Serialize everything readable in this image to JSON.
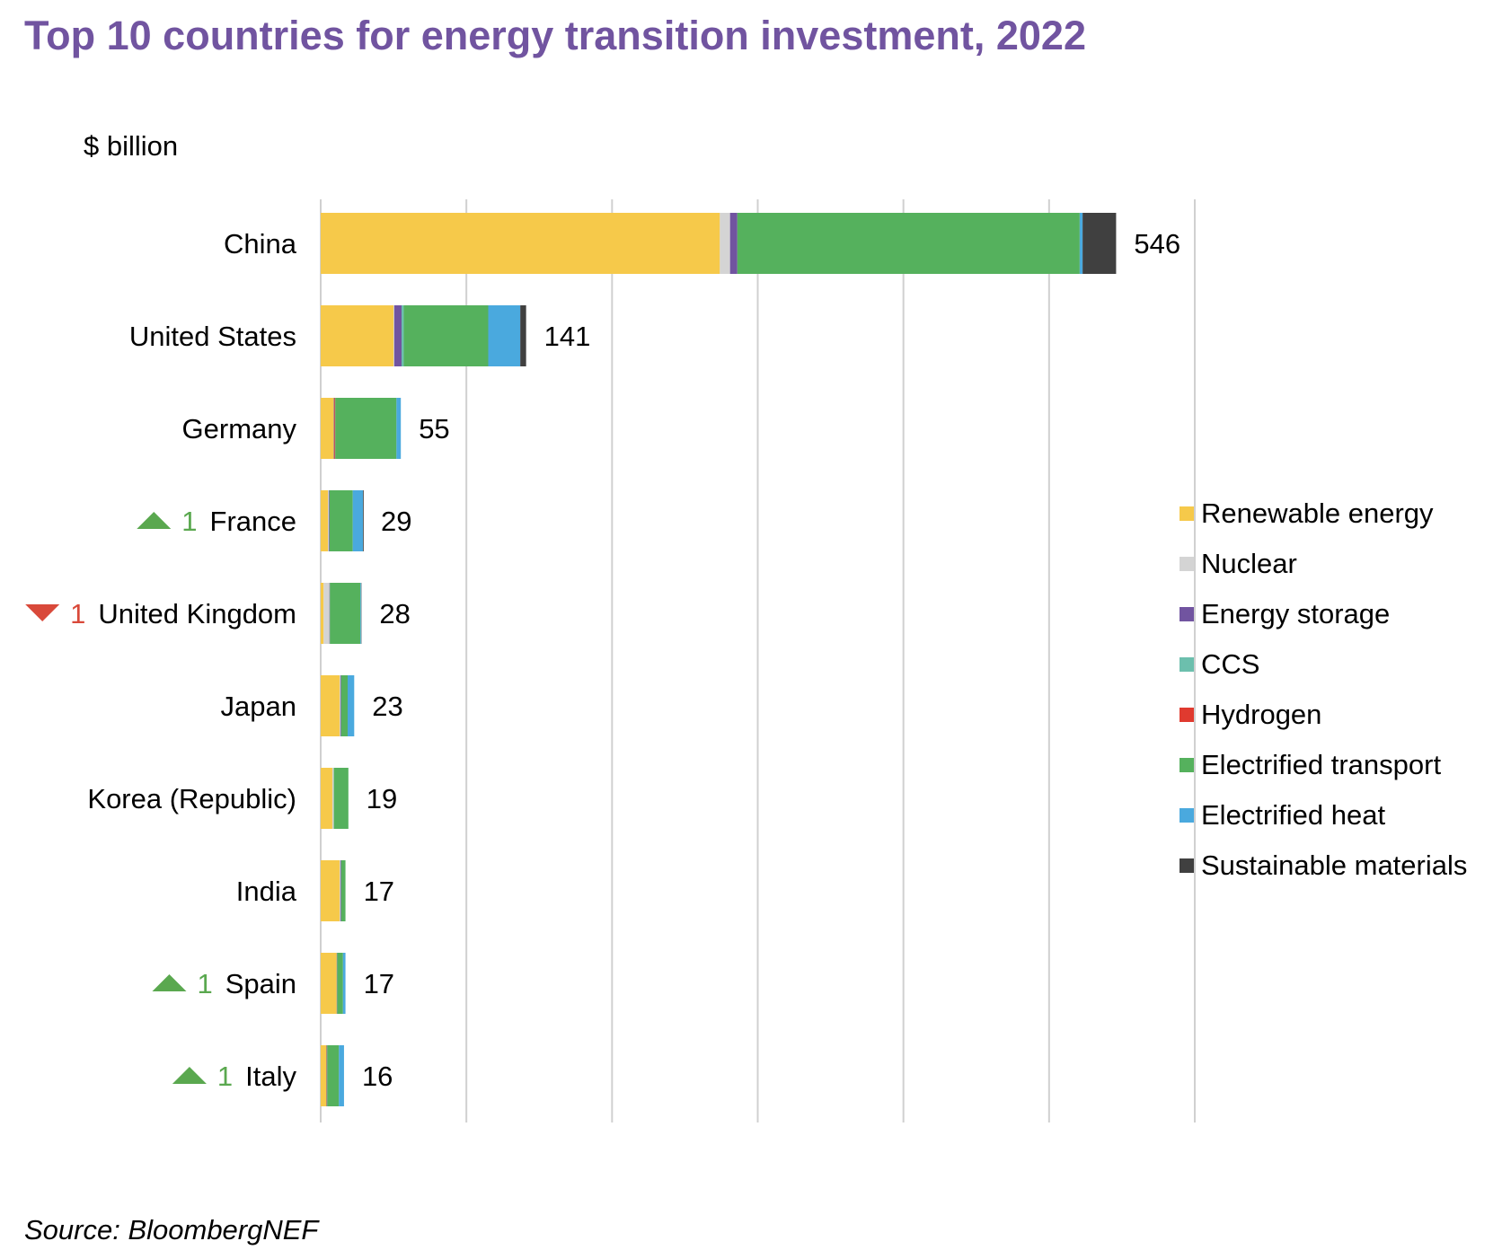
{
  "chart_data": {
    "type": "bar",
    "orientation": "horizontal",
    "stacked": true,
    "title": "Top 10 countries for energy transition investment, 2022",
    "unit_label": "$ billion",
    "source": "Source: BloombergNEF",
    "xlim": [
      0,
      600
    ],
    "grid": true,
    "legend_position": "right",
    "categories": [
      "China",
      "United States",
      "Germany",
      "France",
      "United Kingdom",
      "Japan",
      "Korea (Republic)",
      "India",
      "Spain",
      "Italy"
    ],
    "totals": [
      546,
      141,
      55,
      29,
      28,
      23,
      19,
      17,
      17,
      16
    ],
    "total_labels": [
      "546",
      "141",
      "55",
      "29",
      "28",
      "23",
      "19",
      "17",
      "17",
      "16"
    ],
    "rank_changes": [
      null,
      null,
      null,
      {
        "direction": "up",
        "value": "1",
        "color": "#5aa84f"
      },
      {
        "direction": "down",
        "value": "1",
        "color": "#d9493a"
      },
      null,
      null,
      null,
      {
        "direction": "up",
        "value": "1",
        "color": "#5aa84f"
      },
      {
        "direction": "up",
        "value": "1",
        "color": "#5aa84f"
      }
    ],
    "series": [
      {
        "name": "Renewable energy",
        "color": "#f6c94a",
        "values": [
          274,
          50,
          9,
          5,
          2,
          13,
          8,
          13,
          11,
          4
        ]
      },
      {
        "name": "Nuclear",
        "color": "#d4d4d4",
        "values": [
          7,
          0.5,
          0,
          0.5,
          4,
          0.5,
          1,
          0.5,
          0,
          0
        ]
      },
      {
        "name": "Energy storage",
        "color": "#7154a0",
        "values": [
          5,
          5,
          0.5,
          0.5,
          0.3,
          0.5,
          0,
          0.5,
          0.3,
          0.5
        ]
      },
      {
        "name": "CCS",
        "color": "#6cbfad",
        "values": [
          0,
          1.5,
          0,
          0,
          0,
          0,
          0,
          0,
          0,
          0
        ]
      },
      {
        "name": "Hydrogen",
        "color": "#e03a2f",
        "values": [
          0,
          0,
          0.5,
          0,
          0,
          0,
          0,
          0,
          0,
          0
        ]
      },
      {
        "name": "Electrified transport",
        "color": "#55b15d",
        "values": [
          235,
          58,
          42,
          16,
          21,
          4.5,
          10,
          3,
          4,
          8
        ]
      },
      {
        "name": "Electrified heat",
        "color": "#4aa9de",
        "values": [
          2,
          22,
          3,
          7,
          0.5,
          4.5,
          0,
          0,
          1.7,
          3.5
        ]
      },
      {
        "name": "Sustainable materials",
        "color": "#404040",
        "values": [
          23,
          4,
          0,
          0.5,
          0.2,
          0,
          0,
          0,
          0,
          0
        ]
      }
    ]
  }
}
